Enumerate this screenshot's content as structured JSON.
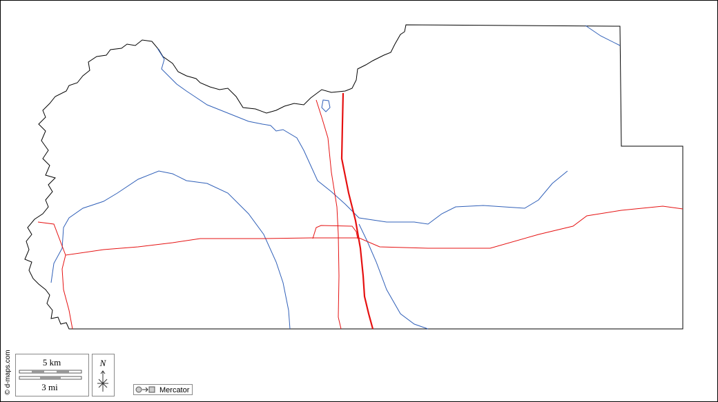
{
  "credit": "© d-maps.com",
  "scale": {
    "metric": "5 km",
    "imperial": "3 mi"
  },
  "north": "N",
  "projection": "Mercator"
}
